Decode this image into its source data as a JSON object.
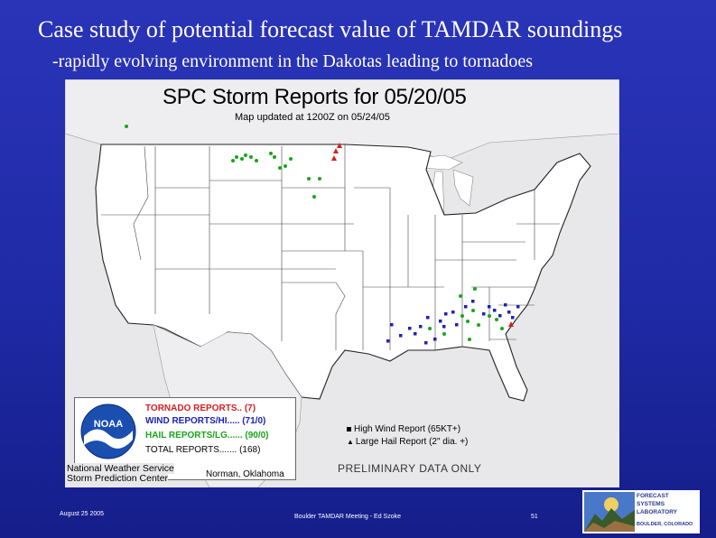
{
  "slide": {
    "title": "Case study of potential forecast value of TAMDAR soundings",
    "subtitle": "-rapidly evolving environment in the Dakotas leading to tornadoes"
  },
  "map": {
    "title": "SPC Storm Reports for 05/20/05",
    "updated": "Map updated at 1200Z on 05/24/05",
    "legend": {
      "tornado": "TORNADO REPORTS.. (7)",
      "wind": "WIND REPORTS/HI..... (71/0)",
      "hail": "HAIL REPORTS/LG...... (90/0)",
      "total": "TOTAL REPORTS....... (168)",
      "logo_text": "NOAA"
    },
    "agency_line1": "National Weather Service",
    "agency_line2": "Storm Prediction Center",
    "location": "Norman, Oklahoma",
    "high_wind": "High Wind Report (65KT+)",
    "large_hail": "Large Hail Report (2\" dia. +)",
    "preliminary": "PRELIMINARY DATA ONLY",
    "colors": {
      "tornado": "#d42020",
      "wind": "#1c22b8",
      "hail": "#1aa51a"
    }
  },
  "footer": {
    "date": "August 25 2005",
    "meeting": "Boulder TAMDAR Meeting - Ed Szoke",
    "page": "51"
  },
  "logo": {
    "line1": "FORECAST",
    "line2": "SYSTEMS",
    "line3": "LABORATORY",
    "line4": "BOULDER, COLORADO"
  }
}
